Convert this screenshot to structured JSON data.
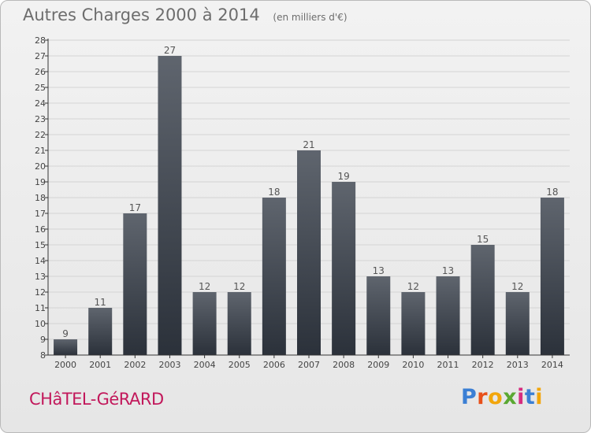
{
  "header": {
    "title": "Autres Charges 2000 à 2014",
    "subtitle": "(en milliers d'€)"
  },
  "commune": "CHâTEL-GéRARD",
  "logo": {
    "text": "Proxiti",
    "letter_colors": [
      "#3b7fd4",
      "#e8501a",
      "#f2a60c",
      "#5aa832",
      "#d62d7f",
      "#3b7fd4",
      "#f2a60c"
    ]
  },
  "colors": {
    "bar_top": "#5f656e",
    "bar_bottom": "#2b313a",
    "axis": "#333333",
    "grid": "#d4d4d4"
  },
  "chart_data": {
    "type": "bar",
    "categories": [
      "2000",
      "2001",
      "2002",
      "2003",
      "2004",
      "2005",
      "2006",
      "2007",
      "2008",
      "2009",
      "2010",
      "2011",
      "2012",
      "2013",
      "2014"
    ],
    "values": [
      9,
      11,
      17,
      27,
      12,
      12,
      18,
      21,
      19,
      13,
      12,
      13,
      15,
      12,
      18
    ],
    "value_labels": [
      "9",
      "11",
      "17",
      "27",
      "12",
      "12",
      "18",
      "21",
      "19",
      "13",
      "12",
      "13",
      "15",
      "12",
      "18"
    ],
    "y_ticks": [
      "8",
      "9",
      "10",
      "11",
      "12",
      "13",
      "14",
      "15",
      "16",
      "17",
      "18",
      "19",
      "20",
      "21",
      "22",
      "23",
      "24",
      "25",
      "26",
      "27",
      "28"
    ],
    "ylim": [
      8,
      28
    ],
    "grid": true,
    "legend": false
  }
}
